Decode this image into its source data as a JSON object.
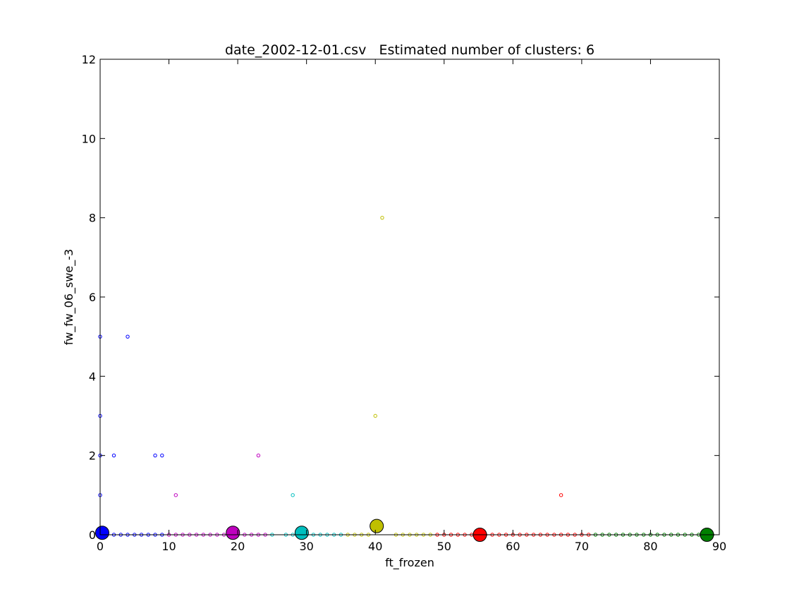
{
  "chart_data": {
    "type": "scatter",
    "title": "date_2002-12-01.csv   Estimated number of clusters: 6",
    "xlabel": "ft_frozen",
    "ylabel": "fw_fw_06_swe_-3",
    "xlim": [
      0,
      90
    ],
    "ylim": [
      0,
      12
    ],
    "xticks": [
      "0",
      "10",
      "20",
      "30",
      "40",
      "50",
      "60",
      "70",
      "80",
      "90"
    ],
    "yticks": [
      "0",
      "2",
      "4",
      "6",
      "8",
      "10",
      "12"
    ],
    "grid": false,
    "legend": "none",
    "series": [
      {
        "color": "#0000ff",
        "points": [
          [
            0,
            0
          ],
          [
            0,
            1
          ],
          [
            0,
            2
          ],
          [
            0,
            3
          ],
          [
            0,
            5
          ],
          [
            1,
            0
          ],
          [
            2,
            0
          ],
          [
            2,
            2
          ],
          [
            3,
            0
          ],
          [
            4,
            0
          ],
          [
            4,
            5
          ],
          [
            5,
            0
          ],
          [
            6,
            0
          ],
          [
            7,
            0
          ],
          [
            8,
            0
          ],
          [
            8,
            2
          ],
          [
            9,
            0
          ],
          [
            9,
            2
          ]
        ],
        "centroid": [
          0.3,
          0.05
        ]
      },
      {
        "color": "#bf00bf",
        "points": [
          [
            10,
            0
          ],
          [
            11,
            0
          ],
          [
            11,
            1
          ],
          [
            12,
            0
          ],
          [
            13,
            0
          ],
          [
            14,
            0
          ],
          [
            15,
            0
          ],
          [
            16,
            0
          ],
          [
            17,
            0
          ],
          [
            18,
            0
          ],
          [
            19,
            0
          ],
          [
            20,
            0
          ],
          [
            21,
            0
          ],
          [
            22,
            0
          ],
          [
            23,
            0
          ],
          [
            23,
            2
          ],
          [
            24,
            0
          ]
        ],
        "centroid": [
          19.3,
          0.05
        ]
      },
      {
        "color": "#00bfbf",
        "points": [
          [
            25,
            0
          ],
          [
            27,
            0
          ],
          [
            28,
            0
          ],
          [
            28,
            1
          ],
          [
            29,
            0
          ],
          [
            30,
            0
          ],
          [
            31,
            0
          ],
          [
            32,
            0
          ],
          [
            33,
            0
          ],
          [
            34,
            0
          ],
          [
            35,
            0
          ]
        ],
        "centroid": [
          29.3,
          0.05
        ]
      },
      {
        "color": "#bfbf00",
        "points": [
          [
            36,
            0
          ],
          [
            37,
            0
          ],
          [
            38,
            0
          ],
          [
            39,
            0
          ],
          [
            40,
            3
          ],
          [
            41,
            8
          ],
          [
            43,
            0
          ],
          [
            44,
            0
          ],
          [
            45,
            0
          ],
          [
            46,
            0
          ],
          [
            47,
            0
          ],
          [
            48,
            0
          ]
        ],
        "centroid": [
          40.2,
          0.22
        ]
      },
      {
        "color": "#ff0000",
        "points": [
          [
            49,
            0
          ],
          [
            50,
            0
          ],
          [
            51,
            0
          ],
          [
            52,
            0
          ],
          [
            53,
            0
          ],
          [
            54,
            0
          ],
          [
            55,
            0
          ],
          [
            56,
            0
          ],
          [
            57,
            0
          ],
          [
            58,
            0
          ],
          [
            59,
            0
          ],
          [
            60,
            0
          ],
          [
            61,
            0
          ],
          [
            62,
            0
          ],
          [
            63,
            0
          ],
          [
            64,
            0
          ],
          [
            65,
            0
          ],
          [
            66,
            0
          ],
          [
            67,
            0
          ],
          [
            67,
            1
          ],
          [
            68,
            0
          ],
          [
            69,
            0
          ],
          [
            70,
            0
          ],
          [
            71,
            0
          ]
        ],
        "centroid": [
          55.2,
          0.0
        ]
      },
      {
        "color": "#008000",
        "points": [
          [
            72,
            0
          ],
          [
            73,
            0
          ],
          [
            74,
            0
          ],
          [
            75,
            0
          ],
          [
            76,
            0
          ],
          [
            77,
            0
          ],
          [
            78,
            0
          ],
          [
            79,
            0
          ],
          [
            80,
            0
          ],
          [
            81,
            0
          ],
          [
            82,
            0
          ],
          [
            83,
            0
          ],
          [
            84,
            0
          ],
          [
            85,
            0
          ],
          [
            86,
            0
          ],
          [
            87,
            0
          ],
          [
            88,
            0
          ],
          [
            89,
            0
          ]
        ],
        "centroid": [
          88.2,
          0.0
        ]
      }
    ]
  }
}
